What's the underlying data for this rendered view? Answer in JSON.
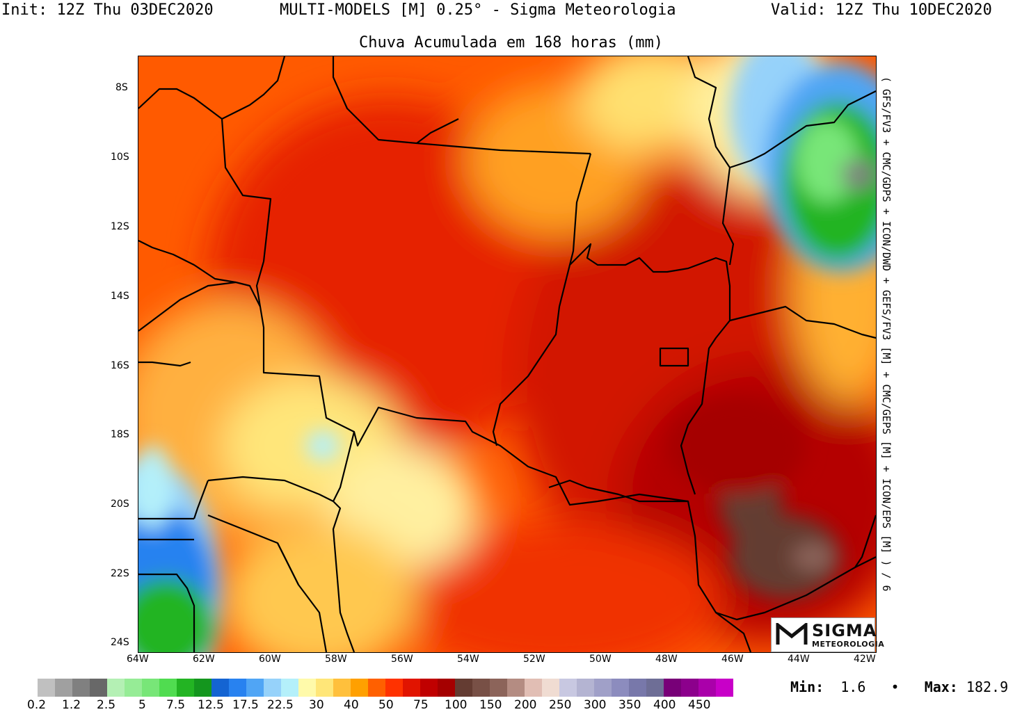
{
  "header": {
    "init": "Init: 12Z Thu 03DEC2020",
    "center": "MULTI-MODELS [M] 0.25° - Sigma Meteorologia",
    "valid": "Valid: 12Z Thu 10DEC2020"
  },
  "title": "Chuva Acumulada em 168 horas (mm)",
  "side_label": "( GFS/FV3 + CMC/GDPS + ICON/DWD + GEFS/FV3 [M] + CMC/GEPS [M] + ICON/EPS [M] ) / 6",
  "lat_labels": [
    "8S",
    "10S",
    "12S",
    "14S",
    "16S",
    "18S",
    "20S",
    "22S",
    "24S"
  ],
  "lon_labels": [
    "64W",
    "62W",
    "60W",
    "58W",
    "56W",
    "54W",
    "52W",
    "50W",
    "48W",
    "46W",
    "44W",
    "42W"
  ],
  "logo": {
    "name": "SIGMA",
    "sub": "METEOROLOGIA"
  },
  "colorbar": {
    "colors": [
      "#c0c0c0",
      "#a0a0a0",
      "#808080",
      "#686868",
      "#b4f0b4",
      "#96ec96",
      "#78e678",
      "#50dc50",
      "#23b423",
      "#14961e",
      "#1464d2",
      "#2882f0",
      "#50a5f5",
      "#96d2fa",
      "#b4f0fa",
      "#fffaaa",
      "#ffe678",
      "#ffc03c",
      "#ffa000",
      "#ff6000",
      "#ff3200",
      "#e11400",
      "#c00000",
      "#a50000",
      "#643c32",
      "#785046",
      "#8c645a",
      "#b48c82",
      "#e1beb4",
      "#f0dcd2",
      "#c8c8e1",
      "#b4b4d2",
      "#a0a0c8",
      "#8c8cbe",
      "#7878aa",
      "#6e6e96",
      "#780078",
      "#8c008c",
      "#aa00aa",
      "#c800c8"
    ],
    "labels": [
      "0.2",
      "1.2",
      "2.5",
      "5",
      "7.5",
      "12.5",
      "17.5",
      "22.5",
      "30",
      "40",
      "50",
      "75",
      "100",
      "150",
      "200",
      "250",
      "300",
      "350",
      "400",
      "450"
    ]
  },
  "stats": {
    "min_label": "Min:",
    "min_value": "1.6",
    "sep": "•",
    "max_label": "Max:",
    "max_value": "182.9"
  }
}
